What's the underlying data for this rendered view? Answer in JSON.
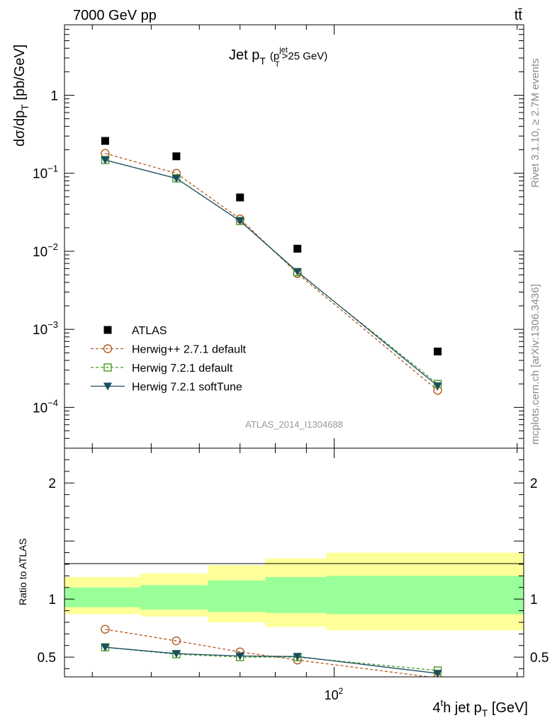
{
  "header": {
    "left": "7000 GeV pp",
    "right": "tt̄"
  },
  "plot_title": {
    "main": "Jet p",
    "main_sub": "T",
    "paren_open": "(p",
    "paren_sup": "jet",
    "paren_sub": "T",
    "paren_rest": ">25 GeV)"
  },
  "side_labels": {
    "rivet": "Rivet 3.1.10, ≥ 2.7M events",
    "mcplots": "mcplots.cern.ch [arXiv:1306.3436]"
  },
  "analysis_id": "ATLAS_2014_I1304688",
  "colors": {
    "data": "#000000",
    "herwigpp": "#b35a1f",
    "herwig721": "#4a9a1f",
    "softtune": "#1a4d63",
    "band_outer": "#ffff99",
    "band_inner": "#99ff99"
  },
  "chart_data": [
    {
      "type": "scatter",
      "panel": "main",
      "ylabel_parts": [
        "dσ/dp",
        "T",
        " [pb/GeV]"
      ],
      "xscale": "log",
      "yscale": "log",
      "xlim": [
        36,
        205
      ],
      "ylim": [
        3e-05,
        8
      ],
      "yticks": [
        {
          "value": 1,
          "label": "1",
          "sup": ""
        },
        {
          "value": 0.1,
          "label": "10",
          "sup": "−1"
        },
        {
          "value": 0.01,
          "label": "10",
          "sup": "−2"
        },
        {
          "value": 0.001,
          "label": "10",
          "sup": "−3"
        },
        {
          "value": 0.0001,
          "label": "10",
          "sup": "−4"
        }
      ],
      "legend_position": "bottom-left",
      "series": [
        {
          "name": "ATLAS",
          "key": "data",
          "marker": "filled-square",
          "line": "none",
          "x": [
            42,
            55,
            70,
            87,
            148
          ],
          "y": [
            0.26,
            0.165,
            0.049,
            0.0108,
            0.00052
          ]
        },
        {
          "name": "Herwig++ 2.7.1 default",
          "key": "herwigpp",
          "marker": "open-circle",
          "line": "dashed",
          "x": [
            42,
            55,
            70,
            87,
            148
          ],
          "y": [
            0.18,
            0.1,
            0.026,
            0.0052,
            0.000165
          ]
        },
        {
          "name": "Herwig 7.2.1 default",
          "key": "herwig721",
          "marker": "open-square",
          "line": "dashed",
          "x": [
            42,
            55,
            70,
            87,
            148
          ],
          "y": [
            0.148,
            0.086,
            0.0245,
            0.0054,
            0.0002
          ]
        },
        {
          "name": "Herwig 7.2.1 softTune",
          "key": "softtune",
          "marker": "filled-triangle-down",
          "line": "solid",
          "x": [
            42,
            55,
            70,
            87,
            148
          ],
          "y": [
            0.148,
            0.086,
            0.0245,
            0.0055,
            0.000188
          ]
        }
      ]
    },
    {
      "type": "line",
      "panel": "ratio",
      "ylabel": "Ratio to ATLAS",
      "xlabel_parts": [
        "4",
        "t",
        "h jet p",
        "T",
        " [GeV]"
      ],
      "xscale": "log",
      "xlim": [
        36,
        205
      ],
      "ylim": [
        0.33,
        2.3
      ],
      "yticks": [
        {
          "value": 2,
          "label": "2"
        },
        {
          "value": 1,
          "label": "1"
        },
        {
          "value": 0.5,
          "label": "0.5"
        }
      ],
      "xticks": [
        {
          "value": 100,
          "label": "10",
          "sup": "2"
        }
      ],
      "bands": {
        "edges": [
          36,
          48,
          62,
          77,
          97,
          205
        ],
        "outer_lo": [
          0.87,
          0.85,
          0.8,
          0.76,
          0.73
        ],
        "outer_hi": [
          1.19,
          1.22,
          1.29,
          1.35,
          1.4
        ],
        "inner_lo": [
          0.93,
          0.91,
          0.89,
          0.88,
          0.87
        ],
        "inner_hi": [
          1.1,
          1.12,
          1.16,
          1.19,
          1.2
        ]
      },
      "series": [
        {
          "name": "Herwig++ 2.7.1 default",
          "key": "herwigpp",
          "marker": "open-circle",
          "line": "dashed",
          "x": [
            42,
            55,
            70,
            87,
            148
          ],
          "y": [
            0.74,
            0.64,
            0.545,
            0.475,
            0.32
          ]
        },
        {
          "name": "Herwig 7.2.1 default",
          "key": "herwig721",
          "marker": "open-square",
          "line": "dashed",
          "x": [
            42,
            55,
            70,
            87,
            148
          ],
          "y": [
            0.585,
            0.525,
            0.5,
            0.5,
            0.385
          ]
        },
        {
          "name": "Herwig 7.2.1 softTune",
          "key": "softtune",
          "marker": "filled-triangle-down",
          "line": "solid",
          "x": [
            42,
            55,
            70,
            87,
            148
          ],
          "y": [
            0.585,
            0.53,
            0.51,
            0.505,
            0.36
          ]
        }
      ]
    }
  ]
}
